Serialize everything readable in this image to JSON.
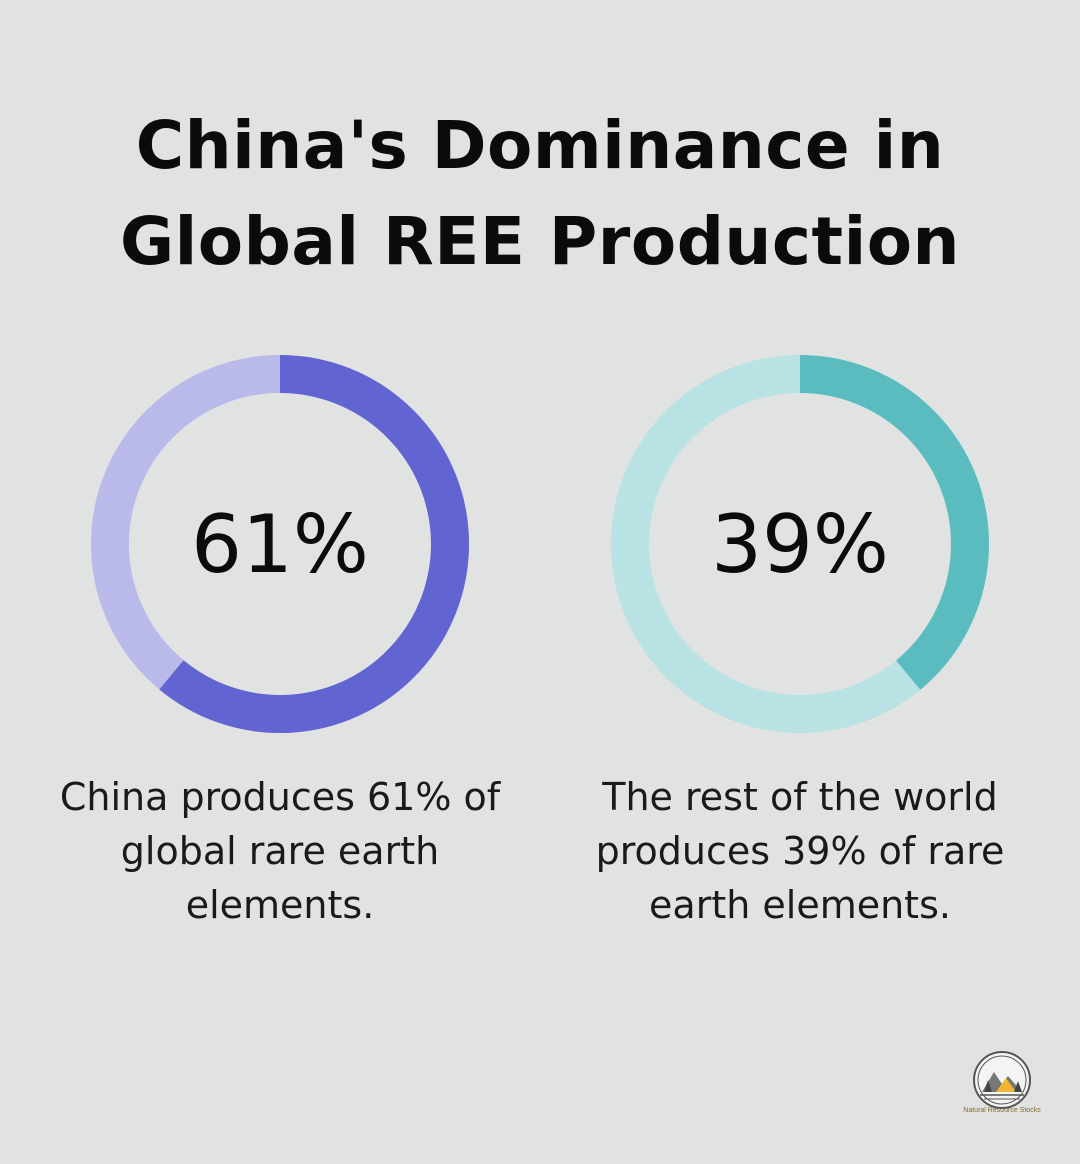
{
  "title": {
    "line1": "China's Dominance in",
    "line2": "Global REE Production"
  },
  "chart_data": [
    {
      "type": "pie",
      "style": "donut",
      "value": 61,
      "center_label": "61%",
      "caption": "China produces 61% of global rare earth elements.",
      "caption_lines": [
        "China produces 61% of",
        "global rare earth",
        "elements."
      ],
      "colors": {
        "fill": "#6264d1",
        "track": "#b9bae9"
      }
    },
    {
      "type": "pie",
      "style": "donut",
      "value": 39,
      "center_label": "39%",
      "caption": "The rest of the world produces 39% of rare earth elements.",
      "caption_lines": [
        "The rest of the world",
        "produces 39% of rare",
        "earth elements."
      ],
      "colors": {
        "fill": "#5bbcc0",
        "track": "#b9e2e4"
      }
    }
  ],
  "logo": {
    "icon": "mountain-trees-logo-icon",
    "text": "Natural Resource Stocks"
  },
  "colors": {
    "background": "#e1e3e2",
    "title": "#0b0b0b"
  }
}
